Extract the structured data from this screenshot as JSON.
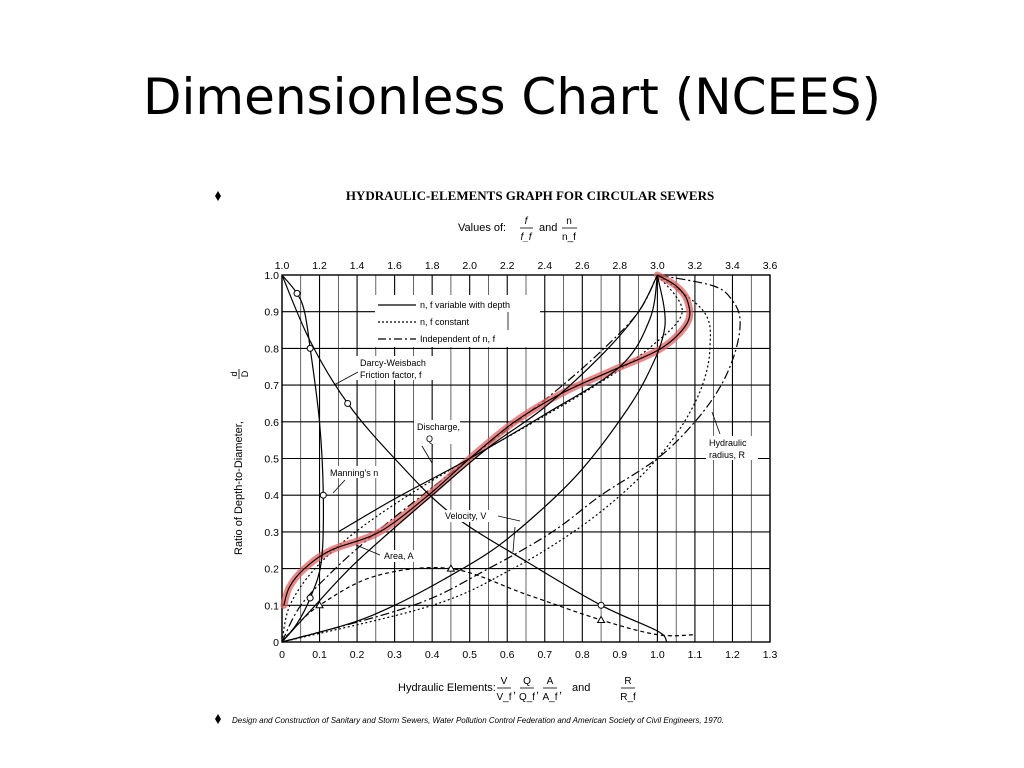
{
  "slide": {
    "title": "Dimensionless Chart (NCEES)"
  },
  "chart_data": {
    "type": "line",
    "title": "HYDRAULIC-ELEMENTS GRAPH FOR CIRCULAR SEWERS",
    "top_axis": {
      "label_prefix": "Values of:",
      "label_frac1": {
        "num": "f",
        "den": "f_f"
      },
      "label_join": "and",
      "label_frac2": {
        "num": "n",
        "den": "n_f"
      },
      "ticks": [
        "1.0",
        "1.2",
        "1.4",
        "1.6",
        "1.8",
        "2.0",
        "2.2",
        "2.4",
        "2.6",
        "2.8",
        "3.0",
        "3.2",
        "3.4",
        "3.6"
      ],
      "range": [
        1.0,
        3.6
      ]
    },
    "x_axis": {
      "label_prefix": "Hydraulic Elements:",
      "fractions": [
        {
          "num": "V",
          "den": "V_f"
        },
        {
          "num": "Q",
          "den": "Q_f"
        },
        {
          "num": "A",
          "den": "A_f"
        },
        {
          "num": "R",
          "den": "R_f"
        }
      ],
      "comma": ",",
      "join": "and",
      "ticks": [
        "0",
        "0.1",
        "0.2",
        "0.3",
        "0.4",
        "0.5",
        "0.6",
        "0.7",
        "0.8",
        "0.9",
        "1.0",
        "1.1",
        "1.2",
        "1.3"
      ],
      "range": [
        0,
        1.3
      ]
    },
    "y_axis": {
      "label": "Ratio of Depth-to-Diameter,",
      "label_frac": {
        "num": "d",
        "den": "D"
      },
      "ticks": [
        "0",
        "0.1",
        "0.2",
        "0.3",
        "0.4",
        "0.5",
        "0.6",
        "0.7",
        "0.8",
        "0.9",
        "1.0"
      ],
      "range": [
        0,
        1.0
      ]
    },
    "grid": true,
    "legend_placement": "top-center",
    "legend": [
      {
        "label": "n, f variable with depth",
        "style": "solid"
      },
      {
        "label": "n, f constant",
        "style": "dotted"
      },
      {
        "label": "Independent of n, f",
        "style": "dashdot"
      }
    ],
    "annotations": {
      "darcy": [
        "Darcy-Weisbach",
        "Friction factor, f"
      ],
      "manning": "Manning's n",
      "discharge": [
        "Discharge,",
        "Q"
      ],
      "velocity": "Velocity, V",
      "area": "Area, A",
      "radius": [
        "Hydraulic",
        "radius, R"
      ]
    },
    "highlight_color": "#e06060",
    "series": [
      {
        "key": "area",
        "style": "dashdot",
        "axis": "bottom",
        "x": [
          0,
          0.05,
          0.142,
          0.252,
          0.374,
          0.5,
          0.626,
          0.748,
          0.858,
          0.95,
          1.0
        ],
        "y": [
          0,
          0.1,
          0.2,
          0.3,
          0.4,
          0.5,
          0.6,
          0.7,
          0.8,
          0.9,
          1.0
        ]
      },
      {
        "key": "discharge_const",
        "style": "dotted",
        "axis": "bottom",
        "x": [
          0,
          0.021,
          0.088,
          0.196,
          0.337,
          0.5,
          0.672,
          0.837,
          0.977,
          1.066,
          1.0
        ],
        "y": [
          0,
          0.1,
          0.2,
          0.3,
          0.4,
          0.5,
          0.6,
          0.7,
          0.8,
          0.9,
          1.0
        ]
      },
      {
        "key": "velocity_const",
        "style": "dotted",
        "axis": "bottom",
        "x": [
          0,
          0.401,
          0.615,
          0.776,
          0.902,
          1.0,
          1.072,
          1.12,
          1.14,
          1.124,
          1.0
        ],
        "y": [
          0,
          0.1,
          0.2,
          0.3,
          0.4,
          0.5,
          0.6,
          0.7,
          0.8,
          0.9,
          1.0
        ]
      },
      {
        "key": "radius",
        "style": "dashdot",
        "axis": "bottom",
        "x": [
          0,
          0.35,
          0.55,
          0.72,
          0.85,
          1.0,
          1.1,
          1.17,
          1.21,
          1.22,
          1.2,
          1.15,
          1.0
        ],
        "y": [
          0,
          0.1,
          0.2,
          0.3,
          0.4,
          0.5,
          0.6,
          0.7,
          0.8,
          0.88,
          0.93,
          0.97,
          1.0
        ]
      },
      {
        "key": "discharge_var",
        "style": "solid",
        "axis": "bottom",
        "highlight": true,
        "x": [
          0.005,
          0.02,
          0.06,
          0.13,
          0.26,
          0.39,
          0.5,
          0.62,
          0.75,
          0.88,
          1.01,
          1.08,
          1.08,
          1.05,
          1.0
        ],
        "y": [
          0.1,
          0.15,
          0.2,
          0.25,
          0.3,
          0.4,
          0.5,
          0.6,
          0.68,
          0.74,
          0.8,
          0.87,
          0.93,
          0.97,
          1.0
        ]
      },
      {
        "key": "velocity_var",
        "style": "solid",
        "axis": "bottom",
        "x": [
          0,
          0.18,
          0.3,
          0.43,
          0.56,
          0.68,
          0.79,
          0.89,
          0.97,
          1.02,
          1.0
        ],
        "y": [
          0,
          0.05,
          0.1,
          0.17,
          0.25,
          0.35,
          0.46,
          0.59,
          0.72,
          0.86,
          1.0
        ]
      },
      {
        "key": "diag1",
        "style": "solid",
        "axis": "bottom",
        "x": [
          0,
          0.08,
          0.2,
          0.4,
          0.55,
          0.7,
          0.85,
          0.95,
          1.0
        ],
        "y": [
          0,
          0.09,
          0.22,
          0.4,
          0.53,
          0.64,
          0.78,
          0.9,
          1.0
        ]
      },
      {
        "key": "diag2",
        "style": "solid",
        "axis": "bottom",
        "x": [
          0.15,
          0.3,
          0.5,
          0.7,
          0.9,
          0.98,
          1.0
        ],
        "y": [
          0.3,
          0.39,
          0.5,
          0.62,
          0.75,
          0.88,
          1.0
        ]
      },
      {
        "key": "manning",
        "style": "solid",
        "axis": "top",
        "markers": "circle",
        "x": [
          1.0,
          1.08,
          1.15,
          1.21,
          1.22,
          1.2,
          1.15,
          1.12,
          1.08,
          1.0
        ],
        "y": [
          0.0,
          0.05,
          0.12,
          0.22,
          0.4,
          0.6,
          0.8,
          0.9,
          0.95,
          1.0
        ]
      },
      {
        "key": "darcy",
        "style": "solid",
        "axis": "top",
        "markers": "circle",
        "x": [
          1.0,
          1.15,
          1.35,
          1.6,
          1.9,
          2.3,
          2.7,
          3.0,
          3.05
        ],
        "y": [
          1.0,
          0.82,
          0.65,
          0.5,
          0.35,
          0.22,
          0.1,
          0.03,
          0.0
        ]
      },
      {
        "key": "friction_tail",
        "style": "dashed",
        "axis": "top",
        "markers": "triangle",
        "x": [
          1.0,
          1.05,
          1.2,
          1.5,
          1.9,
          2.3,
          2.7,
          3.0,
          3.2
        ],
        "y": [
          0.0,
          0.03,
          0.1,
          0.18,
          0.2,
          0.13,
          0.06,
          0.02,
          0.02
        ]
      }
    ],
    "footnote": "Design and Construction of Sanitary and Storm Sewers, Water Pollution Control Federation and American Society of Civil Engineers, 1970."
  }
}
